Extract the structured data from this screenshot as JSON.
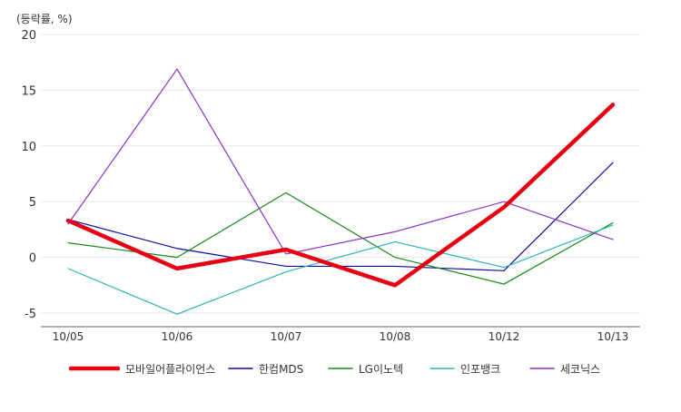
{
  "chart_data": {
    "type": "line",
    "y_unit_label": "(등락률, %)",
    "categories": [
      "10/05",
      "10/06",
      "10/07",
      "10/08",
      "10/12",
      "10/13"
    ],
    "ylim": [
      -5,
      20
    ],
    "yticks": [
      20,
      15,
      10,
      5,
      0,
      -5
    ],
    "y_tick_labels": [
      "20",
      "15",
      "10",
      "5",
      "0",
      "-5"
    ],
    "grid": true,
    "legend_position": "bottom",
    "series": [
      {
        "name": "모바일어플라이언스",
        "color": "#e60012",
        "width": 4.5,
        "values": [
          3.3,
          -1.0,
          0.7,
          -2.5,
          4.5,
          13.7
        ]
      },
      {
        "name": "한컴MDS",
        "color": "#0a0aa8",
        "width": 1.2,
        "values": [
          3.4,
          0.8,
          -0.8,
          -0.8,
          -1.2,
          8.5
        ]
      },
      {
        "name": "LG이노텍",
        "color": "#138a13",
        "width": 1.2,
        "values": [
          1.3,
          0.0,
          5.8,
          0.0,
          -2.4,
          3.1
        ]
      },
      {
        "name": "인포뱅크",
        "color": "#2ab5b5",
        "width": 1.2,
        "values": [
          -1.0,
          -5.1,
          -1.3,
          1.4,
          -0.9,
          2.9
        ]
      },
      {
        "name": "세코닉스",
        "color": "#8b2fc9",
        "width": 1.2,
        "values": [
          3.0,
          16.9,
          0.3,
          2.3,
          5.0,
          1.6
        ]
      }
    ]
  }
}
